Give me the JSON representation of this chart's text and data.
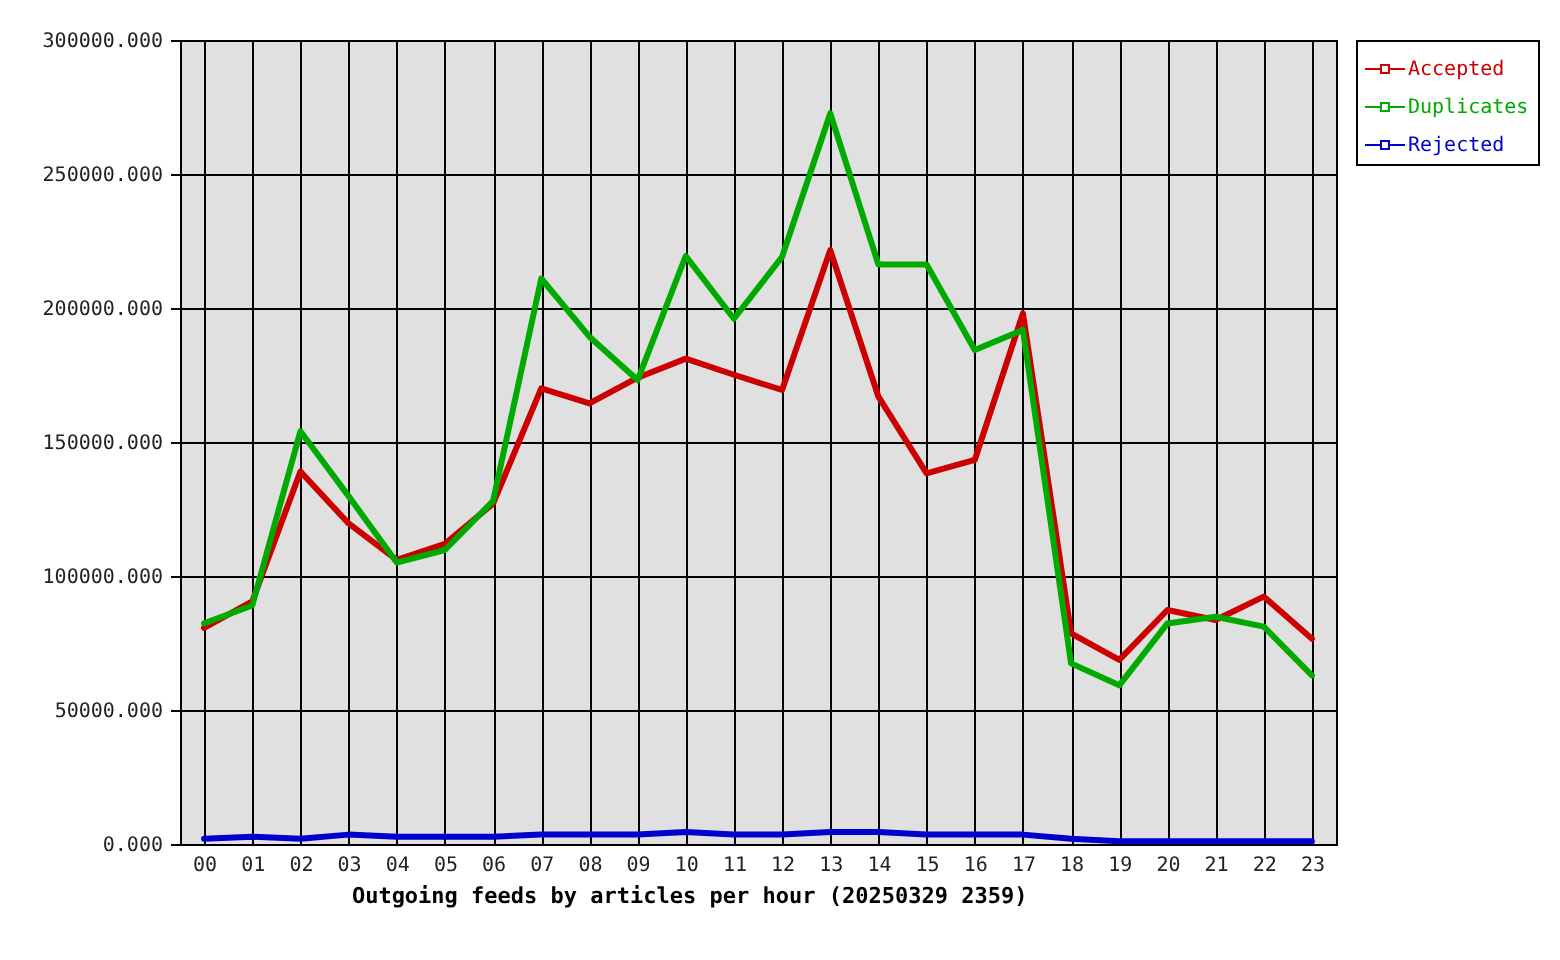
{
  "chart_data": {
    "type": "line",
    "xlabel": "Outgoing feeds by articles per hour (20250329 2359)",
    "categories": [
      "00",
      "01",
      "02",
      "03",
      "04",
      "05",
      "06",
      "07",
      "08",
      "09",
      "10",
      "11",
      "12",
      "13",
      "14",
      "15",
      "16",
      "17",
      "18",
      "19",
      "20",
      "21",
      "22",
      "23"
    ],
    "series": [
      {
        "name": "Accepted",
        "color": "#cc0000",
        "values": [
          80600,
          90500,
          139000,
          119600,
          106000,
          112000,
          127000,
          170000,
          164400,
          174000,
          181100,
          175100,
          169400,
          221600,
          166900,
          138300,
          143300,
          198000,
          78600,
          68700,
          87300,
          83600,
          92300,
          76600
        ]
      },
      {
        "name": "Duplicates",
        "color": "#00aa00",
        "values": [
          82300,
          89000,
          154000,
          129800,
          105000,
          109700,
          128000,
          211000,
          189300,
          173100,
          219400,
          196000,
          219100,
          272600,
          216200,
          216200,
          184300,
          191800,
          67400,
          59200,
          82300,
          84800,
          81100,
          62900
        ]
      },
      {
        "name": "Rejected",
        "color": "#0000cc",
        "values": [
          2000,
          2700,
          2000,
          3500,
          2700,
          2700,
          2700,
          3500,
          3500,
          3500,
          4500,
          3500,
          3500,
          4500,
          4500,
          3500,
          3500,
          3500,
          2000,
          1000,
          1000,
          1000,
          1000,
          1000
        ]
      }
    ],
    "ylim": [
      0,
      300000
    ],
    "yticks": [
      {
        "value": 0,
        "label": "0.000"
      },
      {
        "value": 50000,
        "label": "50000.000"
      },
      {
        "value": 100000,
        "label": "100000.000"
      },
      {
        "value": 150000,
        "label": "150000.000"
      },
      {
        "value": 200000,
        "label": "200000.000"
      },
      {
        "value": 250000,
        "label": "250000.000"
      },
      {
        "value": 300000,
        "label": "300000.000"
      }
    ],
    "grid": true,
    "legend": "top right",
    "line_style": "solid"
  }
}
